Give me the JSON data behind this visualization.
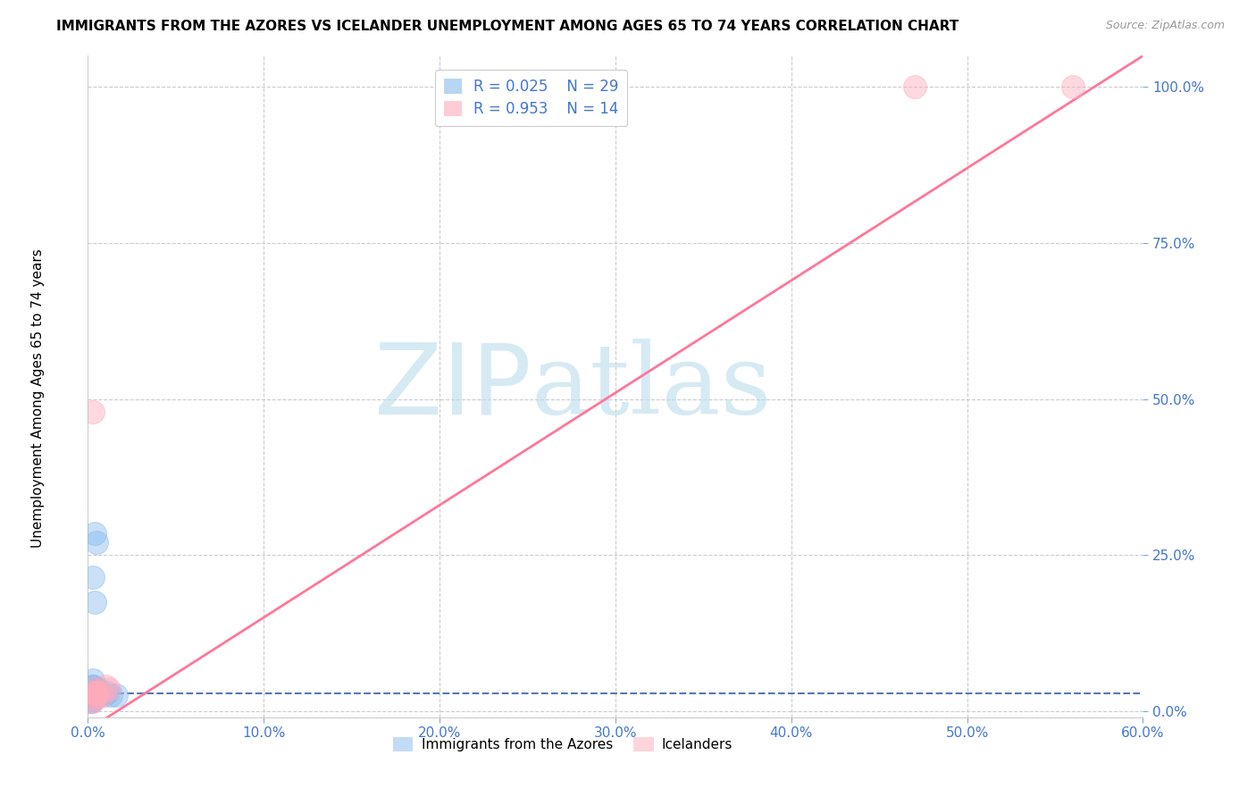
{
  "title": "IMMIGRANTS FROM THE AZORES VS ICELANDER UNEMPLOYMENT AMONG AGES 65 TO 74 YEARS CORRELATION CHART",
  "source": "Source: ZipAtlas.com",
  "ylabel_label": "Unemployment Among Ages 65 to 74 years",
  "legend_label1": "Immigrants from the Azores",
  "legend_label2": "Icelanders",
  "xlim": [
    0.0,
    0.6
  ],
  "ylim": [
    -0.01,
    1.05
  ],
  "xticks": [
    0.0,
    0.1,
    0.2,
    0.3,
    0.4,
    0.5,
    0.6
  ],
  "yticks": [
    0.0,
    0.25,
    0.5,
    0.75,
    1.0
  ],
  "blue_color": "#88BBEE",
  "pink_color": "#FFAABB",
  "blue_line_color": "#5577BB",
  "pink_line_color": "#FF7799",
  "watermark_zip": "ZIP",
  "watermark_atlas": "atlas",
  "watermark_color_zip": "#BBDDEE",
  "watermark_color_atlas": "#BBDDEE",
  "blue_scatter_x": [
    0.004,
    0.005,
    0.003,
    0.004,
    0.003,
    0.002,
    0.003,
    0.004,
    0.003,
    0.003,
    0.002,
    0.003,
    0.002,
    0.005,
    0.006,
    0.003,
    0.003,
    0.004,
    0.003,
    0.003,
    0.002,
    0.009,
    0.011,
    0.013,
    0.016,
    0.005,
    0.003,
    0.002,
    0.003
  ],
  "blue_scatter_y": [
    0.285,
    0.27,
    0.215,
    0.175,
    0.05,
    0.03,
    0.04,
    0.03,
    0.025,
    0.03,
    0.035,
    0.04,
    0.025,
    0.035,
    0.035,
    0.025,
    0.02,
    0.025,
    0.02,
    0.025,
    0.015,
    0.025,
    0.03,
    0.025,
    0.025,
    0.03,
    0.025,
    0.015,
    0.025
  ],
  "pink_scatter_x": [
    0.003,
    0.004,
    0.003,
    0.004,
    0.005,
    0.003,
    0.004,
    0.008,
    0.01,
    0.012,
    0.47,
    0.56,
    0.003,
    0.006
  ],
  "pink_scatter_y": [
    0.48,
    0.03,
    0.035,
    0.025,
    0.025,
    0.02,
    0.03,
    0.025,
    0.04,
    0.035,
    1.0,
    1.0,
    0.015,
    0.03
  ],
  "blue_trend_x": [
    0.0,
    0.6
  ],
  "blue_trend_y": [
    0.028,
    0.028
  ],
  "pink_trend_x": [
    0.0,
    0.6
  ],
  "pink_trend_y": [
    -0.03,
    1.05
  ]
}
